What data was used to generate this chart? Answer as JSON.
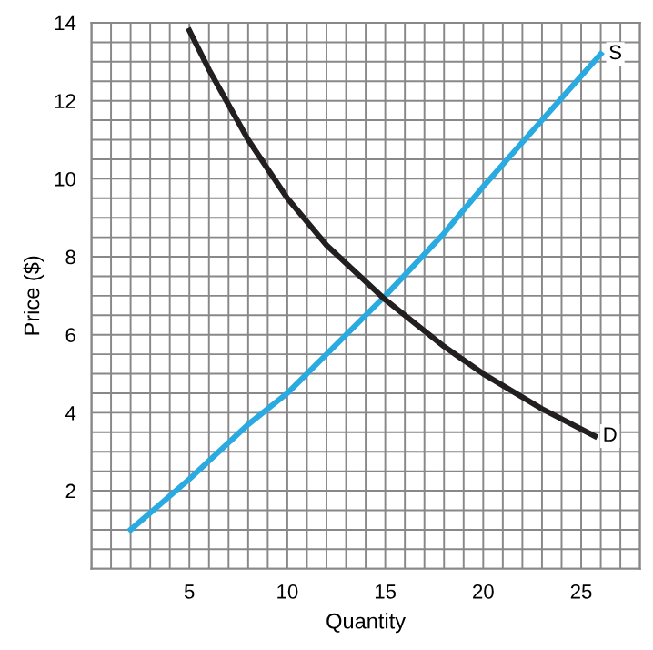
{
  "chart_data": {
    "type": "line",
    "xlabel": "Quantity",
    "ylabel": "Price ($)",
    "xlim": [
      0,
      28
    ],
    "ylim": [
      0,
      14
    ],
    "xticks": [
      5,
      10,
      15,
      20,
      25
    ],
    "yticks": [
      2,
      4,
      6,
      8,
      10,
      12,
      14
    ],
    "grid": true,
    "legend": false,
    "marker": "none",
    "line_style": "solid",
    "series": [
      {
        "name": "S",
        "color": "#29abe2",
        "x": [
          2,
          5,
          8,
          10,
          12,
          15,
          18,
          20,
          23,
          26
        ],
        "values": [
          1,
          2.3,
          3.7,
          4.5,
          5.5,
          7,
          8.6,
          9.8,
          11.5,
          13.2
        ]
      },
      {
        "name": "D",
        "color": "#231f20",
        "x": [
          5,
          6,
          8,
          10,
          12,
          15,
          18,
          20,
          23,
          25.7
        ],
        "values": [
          13.8,
          12.8,
          11,
          9.5,
          8.3,
          6.9,
          5.7,
          5,
          4.1,
          3.4
        ]
      }
    ]
  }
}
